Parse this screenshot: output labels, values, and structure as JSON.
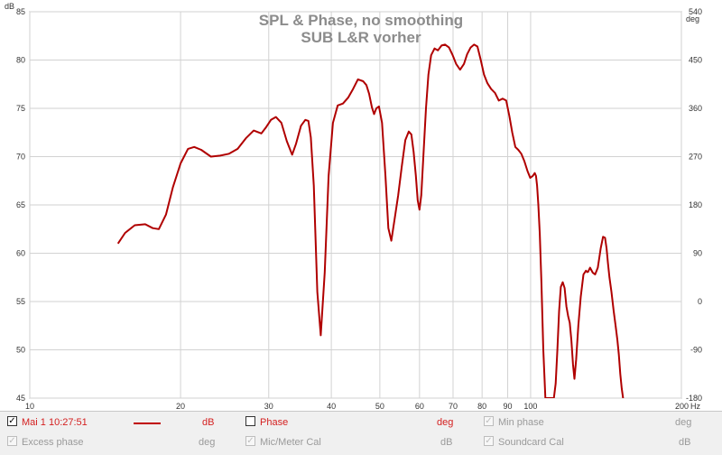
{
  "chart_data": {
    "type": "line",
    "title": "SPL & Phase, no smoothing",
    "subtitle": "SUB L&R vorher",
    "x_scale": "log",
    "xlim": [
      10,
      200
    ],
    "x_unit_label": "Hz",
    "x_ticks": [
      10,
      20,
      30,
      40,
      50,
      60,
      70,
      80,
      90,
      100,
      200
    ],
    "x_tick_labels": [
      "10",
      "20",
      "30",
      "40",
      "50",
      "60",
      "70",
      "80",
      "90",
      "100",
      "200"
    ],
    "ylim": [
      45,
      85
    ],
    "y_ticks": [
      45,
      50,
      55,
      60,
      65,
      70,
      75,
      80,
      85
    ],
    "y_tick_labels": [
      "45",
      "50",
      "55",
      "60",
      "65",
      "70",
      "75",
      "80",
      "85"
    ],
    "ylabel": "dB",
    "y2lim": [
      -180,
      540
    ],
    "y2_ticks": [
      -180,
      -90,
      0,
      90,
      180,
      270,
      360,
      450,
      540
    ],
    "y2_tick_labels": [
      "-180",
      "-90",
      "0",
      "90",
      "180",
      "270",
      "360",
      "450",
      "540"
    ],
    "y2label": "deg",
    "grid": true,
    "color": "#b00000",
    "series": [
      {
        "x": [
          15.0,
          15.5,
          16.2,
          17.0,
          17.6,
          18.1,
          18.7,
          19.3,
          20.0,
          20.7,
          21.3,
          22.0,
          23.0,
          24.0,
          25.0,
          26.0,
          27.0,
          28.0,
          29.0,
          29.6,
          30.3,
          31.0,
          31.8,
          32.6,
          33.4,
          34.0,
          34.8,
          35.5,
          36.0,
          36.4,
          36.9,
          37.5,
          38.1,
          38.8,
          39.5,
          40.3,
          41.2,
          42.2,
          43.2,
          44.2,
          45.2,
          46.3,
          47.0,
          47.6,
          48.2,
          48.7,
          49.2,
          49.8,
          50.5,
          51.3,
          52.0,
          52.7,
          53.5,
          54.4,
          55.3,
          56.2,
          57.1,
          57.8,
          58.4,
          59.0,
          59.5,
          60.0,
          60.5,
          61.1,
          61.8,
          62.5,
          63.3,
          64.3,
          65.3,
          66.4,
          67.5,
          68.7,
          69.9,
          71.0,
          72.3,
          73.6,
          74.7,
          75.9,
          77.1,
          78.3,
          79.5,
          80.7,
          82.0,
          83.4,
          84.9,
          86.4,
          87.9,
          89.4,
          90.7,
          91.9,
          93.2,
          94.5,
          95.8,
          97.2,
          98.6,
          99.8,
          101.0,
          101.9,
          102.5,
          103.0,
          103.6,
          104.3,
          105.1,
          106.0,
          107.0,
          108.0,
          108.9,
          109.7,
          110.5,
          111.3,
          112.2,
          113.1,
          114.0,
          114.9,
          115.9,
          116.9,
          117.9,
          118.8,
          119.7,
          120.6,
          121.5,
          122.3,
          123.3,
          124.5,
          125.9,
          127.5,
          129.0,
          130.0
        ],
        "y": [
          61.0,
          62.1,
          62.9,
          63.0,
          62.6,
          62.5,
          64.0,
          66.8,
          69.3,
          70.8,
          71.0,
          70.7,
          70.0,
          70.1,
          70.3,
          70.8,
          71.9,
          72.7,
          72.4,
          73.0,
          73.8,
          74.1,
          73.5,
          71.6,
          70.2,
          71.3,
          73.2,
          73.8,
          73.7,
          72.0,
          67.0,
          56.0,
          51.5,
          58.0,
          68.0,
          73.5,
          75.3,
          75.5,
          76.1,
          77.0,
          78.0,
          77.8,
          77.4,
          76.5,
          75.1,
          74.4,
          75.0,
          75.2,
          73.5,
          68.0,
          62.6,
          61.3,
          63.5,
          66.0,
          69.0,
          71.7,
          72.6,
          72.3,
          70.5,
          68.0,
          65.5,
          64.5,
          66.0,
          70.2,
          75.0,
          78.5,
          80.5,
          81.2,
          81.0,
          81.5,
          81.6,
          81.3,
          80.5,
          79.6,
          79.0,
          79.6,
          80.6,
          81.3,
          81.6,
          81.4,
          80.0,
          78.5,
          77.6,
          77.0,
          76.6,
          75.8,
          76.0,
          75.8,
          74.2,
          72.5,
          71.0,
          70.7,
          70.3,
          69.5,
          68.5,
          67.8,
          68.0,
          68.3,
          68.0,
          67.0,
          65.0,
          62.0,
          57.0,
          50.0,
          45.0,
          45.0,
          45.0,
          45.0,
          45.0,
          45.0,
          46.5,
          50.0,
          54.0,
          56.5,
          57.0,
          56.4,
          54.5,
          53.5,
          52.8,
          51.0,
          48.5,
          47.0,
          49.0,
          52.5,
          55.5,
          57.8,
          58.2,
          58.0
        ],
        "x_b": [
          130.0,
          131.4,
          133.0,
          134.5,
          136.2,
          138.0,
          139.5,
          140.8,
          141.8,
          142.7,
          143.7,
          145.0,
          146.5,
          147.8,
          149.0,
          150.0,
          151.0,
          152.0,
          153.0
        ],
        "y_b": [
          58.0,
          58.5,
          58.0,
          57.8,
          58.5,
          60.5,
          61.7,
          61.6,
          60.5,
          59.0,
          57.5,
          56.0,
          54.0,
          52.5,
          51.0,
          49.5,
          47.5,
          46.0,
          45.0
        ]
      }
    ]
  },
  "legend": {
    "row1": {
      "check_mark": "✓",
      "measurement_name": "Mai 1 10:27:51",
      "measurement_unit": "dB",
      "phase_label": "Phase",
      "phase_unit": "deg",
      "min_phase_label": "Min phase",
      "min_phase_unit": "deg"
    },
    "row2": {
      "excess_phase_label": "Excess phase",
      "excess_phase_unit": "deg",
      "mic_cal_label": "Mic/Meter Cal",
      "mic_cal_unit": "dB",
      "soundcard_cal_label": "Soundcard Cal",
      "soundcard_cal_unit": "dB"
    }
  }
}
